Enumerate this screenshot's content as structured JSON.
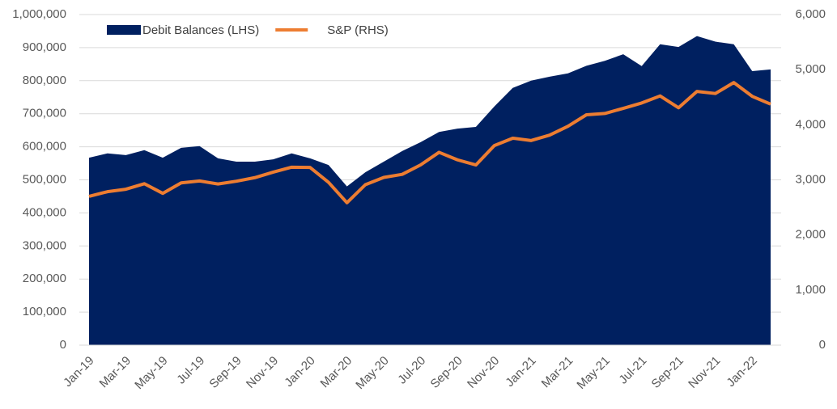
{
  "chart_data": {
    "type": "area_line",
    "categories": [
      "Jan-19",
      null,
      "Mar-19",
      null,
      "May-19",
      null,
      "Jul-19",
      null,
      "Sep-19",
      null,
      "Nov-19",
      null,
      "Jan-20",
      null,
      "Mar-20",
      null,
      "May-20",
      null,
      "Jul-20",
      null,
      "Sep-20",
      null,
      "Nov-20",
      null,
      "Jan-21",
      null,
      "Mar-21",
      null,
      "May-21",
      null,
      "Jul-21",
      null,
      "Sep-21",
      null,
      "Nov-21",
      null,
      "Jan-22",
      null
    ],
    "series": [
      {
        "name": "Debit Balances (LHS)",
        "color": "#002060",
        "kind": "area",
        "values": [
          567000,
          580000,
          575000,
          590000,
          567000,
          597000,
          602000,
          565000,
          555000,
          555000,
          562000,
          580000,
          565000,
          545000,
          480000,
          523000,
          555000,
          587000,
          614000,
          645000,
          655000,
          660000,
          722000,
          778000,
          800000,
          812000,
          822000,
          845000,
          860000,
          880000,
          844000,
          910000,
          902000,
          935000,
          918000,
          910000,
          829000,
          834000
        ]
      },
      {
        "name": "S&P (RHS)",
        "color": "#ed7d31",
        "kind": "line",
        "axis": "y2",
        "values": [
          2700,
          2785,
          2830,
          2930,
          2755,
          2945,
          2980,
          2925,
          2975,
          3040,
          3140,
          3230,
          3225,
          2955,
          2585,
          2912,
          3044,
          3100,
          3271,
          3500,
          3363,
          3270,
          3622,
          3756,
          3714,
          3811,
          3973,
          4181,
          4204,
          4298,
          4395,
          4523,
          4308,
          4605,
          4567,
          4766,
          4516,
          4374
        ]
      }
    ],
    "ylim": [
      0,
      1000000
    ],
    "yticks": [
      0,
      {
        "value": 100000,
        "label": "100,000"
      },
      {
        "value": 200000,
        "label": "200,000"
      },
      {
        "value": 300000,
        "label": "300,000"
      },
      {
        "value": 400000,
        "label": "400,000"
      },
      {
        "value": 500000,
        "label": "500,000"
      },
      {
        "value": 600000,
        "label": "600,000"
      },
      {
        "value": 700000,
        "label": "700,000"
      },
      {
        "value": 800000,
        "label": "800,000"
      },
      {
        "value": 900000,
        "label": "900,000"
      },
      {
        "value": 1000000,
        "label": "1,000,000"
      }
    ],
    "y2lim": [
      0,
      6000
    ],
    "y2ticks": [
      0,
      {
        "value": 1000,
        "label": "1,000"
      },
      {
        "value": 2000,
        "label": "2,000"
      },
      {
        "value": 3000,
        "label": "3,000"
      },
      {
        "value": 4000,
        "label": "4,000"
      },
      {
        "value": 5000,
        "label": "5,000"
      },
      {
        "value": 6000,
        "label": "6,000"
      }
    ],
    "grid": true,
    "legend": "top-left"
  }
}
